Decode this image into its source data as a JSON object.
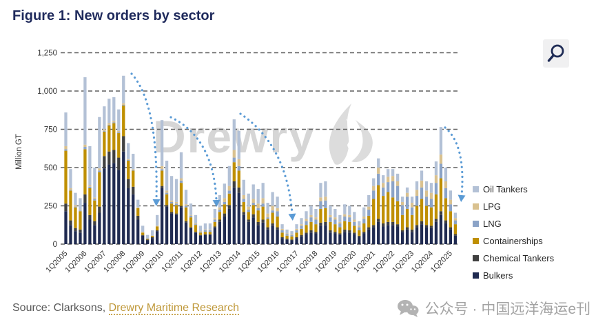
{
  "title": "Figure 1: New orders by sector",
  "toolbar": {
    "zoom_button": "magnifier"
  },
  "watermark": {
    "text": "Drewry",
    "logo": "flame-icon"
  },
  "source": {
    "prefix": "Source: Clarksons, ",
    "link_label": "Drewry Maritime Research"
  },
  "footer_watermark": {
    "icon": "wechat-icon",
    "text": "公众号 · 中国远洋海运e刊"
  },
  "colors": {
    "title_navy": "#1f2a5c",
    "arrow_blue": "#5b9bd5",
    "gridline": "#5f5f5f",
    "axis_text": "#333333",
    "link_gold": "#bf9839",
    "watermark_gray": "#d6d6d6"
  },
  "chart_data": {
    "type": "bar",
    "stacked": true,
    "title": "Figure 1: New orders by sector",
    "xlabel": "",
    "ylabel": "Million GT",
    "ylim": [
      0,
      1250
    ],
    "yticks": [
      0,
      250,
      500,
      750,
      1000,
      1250
    ],
    "ytick_labels": [
      "0",
      "250",
      "500",
      "750",
      "1,000",
      "1,250"
    ],
    "grid": "dashed-horizontal",
    "legend_position": "right",
    "xtick_every": 4,
    "xtick_labels": [
      "1Q2005",
      "1Q2006",
      "1Q2007",
      "1Q2008",
      "1Q2009",
      "1Q2010",
      "1Q2011",
      "1Q2012",
      "1Q2013",
      "1Q2014",
      "1Q2015",
      "1Q2016",
      "1Q2017",
      "1Q2018",
      "1Q2019",
      "1Q2020",
      "1Q2021",
      "1Q2022",
      "1Q2023",
      "1Q2024",
      "1Q2025"
    ],
    "categories": [
      "1Q2005",
      "2Q2005",
      "3Q2005",
      "4Q2005",
      "1Q2006",
      "2Q2006",
      "3Q2006",
      "4Q2006",
      "1Q2007",
      "2Q2007",
      "3Q2007",
      "4Q2007",
      "1Q2008",
      "2Q2008",
      "3Q2008",
      "4Q2008",
      "1Q2009",
      "2Q2009",
      "3Q2009",
      "4Q2009",
      "1Q2010",
      "2Q2010",
      "3Q2010",
      "4Q2010",
      "1Q2011",
      "2Q2011",
      "3Q2011",
      "4Q2011",
      "1Q2012",
      "2Q2012",
      "3Q2012",
      "4Q2012",
      "1Q2013",
      "2Q2013",
      "3Q2013",
      "4Q2013",
      "1Q2014",
      "2Q2014",
      "3Q2014",
      "4Q2014",
      "1Q2015",
      "2Q2015",
      "3Q2015",
      "4Q2015",
      "1Q2016",
      "2Q2016",
      "3Q2016",
      "4Q2016",
      "1Q2017",
      "2Q2017",
      "3Q2017",
      "4Q2017",
      "1Q2018",
      "2Q2018",
      "3Q2018",
      "4Q2018",
      "1Q2019",
      "2Q2019",
      "3Q2019",
      "4Q2019",
      "1Q2020",
      "2Q2020",
      "3Q2020",
      "4Q2020",
      "1Q2021",
      "2Q2021",
      "3Q2021",
      "4Q2021",
      "1Q2022",
      "2Q2022",
      "3Q2022",
      "4Q2022",
      "1Q2023",
      "2Q2023",
      "3Q2023",
      "4Q2023",
      "1Q2024",
      "2Q2024",
      "3Q2024",
      "4Q2024",
      "1Q2025",
      "2Q2025"
    ],
    "stack_order_bottom_to_top": [
      "Bulkers",
      "Chemical Tankers",
      "Containerships",
      "LNG",
      "LPG",
      "Oil Tankers"
    ],
    "series": [
      {
        "name": "Bulkers",
        "color": "#1f2a50",
        "values": [
          215,
          125,
          85,
          75,
          270,
          160,
          125,
          205,
          495,
          520,
          530,
          485,
          605,
          365,
          325,
          160,
          55,
          25,
          40,
          85,
          365,
          245,
          200,
          190,
          240,
          140,
          105,
          75,
          55,
          60,
          60,
          105,
          145,
          180,
          230,
          370,
          335,
          190,
          145,
          175,
          125,
          140,
          95,
          120,
          95,
          40,
          30,
          25,
          40,
          50,
          65,
          75,
          70,
          120,
          125,
          75,
          70,
          60,
          80,
          75,
          65,
          45,
          70,
          95,
          110,
          145,
          115,
          125,
          125,
          115,
          80,
          95,
          80,
          110,
          130,
          110,
          105,
          145,
          190,
          135,
          95,
          55
        ]
      },
      {
        "name": "Chemical Tankers",
        "color": "#404040",
        "values": [
          50,
          30,
          20,
          20,
          55,
          30,
          25,
          40,
          80,
          85,
          85,
          80,
          100,
          60,
          50,
          25,
          5,
          5,
          5,
          5,
          15,
          10,
          10,
          10,
          10,
          10,
          5,
          5,
          5,
          5,
          5,
          10,
          15,
          20,
          25,
          40,
          35,
          20,
          15,
          20,
          20,
          20,
          15,
          15,
          15,
          5,
          5,
          5,
          5,
          10,
          10,
          15,
          10,
          20,
          20,
          15,
          10,
          10,
          15,
          15,
          10,
          10,
          10,
          15,
          15,
          20,
          20,
          20,
          20,
          15,
          10,
          15,
          15,
          15,
          20,
          15,
          15,
          20,
          25,
          20,
          15,
          10
        ]
      },
      {
        "name": "Containerships",
        "color": "#bf8f00",
        "values": [
          345,
          195,
          135,
          120,
          295,
          175,
          135,
          225,
          160,
          170,
          175,
          160,
          200,
          120,
          105,
          50,
          15,
          5,
          10,
          25,
          100,
          70,
          55,
          55,
          150,
          90,
          65,
          45,
          15,
          15,
          15,
          30,
          50,
          60,
          75,
          125,
          110,
          65,
          50,
          60,
          75,
          85,
          55,
          70,
          70,
          30,
          20,
          20,
          30,
          40,
          50,
          55,
          50,
          90,
          90,
          55,
          50,
          40,
          55,
          55,
          45,
          35,
          55,
          75,
          170,
          220,
          180,
          195,
          160,
          150,
          100,
          120,
          95,
          125,
          145,
          125,
          120,
          160,
          215,
          145,
          105,
          65
        ]
      },
      {
        "name": "LNG",
        "color": "#8ba3c7",
        "values": [
          10,
          5,
          5,
          5,
          15,
          10,
          10,
          10,
          5,
          5,
          5,
          5,
          5,
          5,
          5,
          0,
          0,
          0,
          0,
          0,
          10,
          10,
          10,
          10,
          15,
          10,
          10,
          5,
          5,
          10,
          10,
          15,
          15,
          15,
          20,
          30,
          30,
          20,
          15,
          15,
          15,
          20,
          10,
          15,
          35,
          15,
          10,
          10,
          15,
          20,
          25,
          30,
          30,
          50,
          50,
          30,
          30,
          25,
          30,
          30,
          25,
          20,
          30,
          40,
          55,
          75,
          55,
          65,
          105,
          100,
          65,
          80,
          50,
          65,
          75,
          60,
          55,
          75,
          95,
          65,
          45,
          25
        ]
      },
      {
        "name": "LPG",
        "color": "#d9c18f",
        "values": [
          20,
          10,
          10,
          5,
          15,
          10,
          10,
          15,
          10,
          10,
          10,
          10,
          10,
          5,
          5,
          5,
          5,
          0,
          0,
          5,
          20,
          15,
          10,
          10,
          15,
          10,
          5,
          5,
          5,
          5,
          5,
          10,
          15,
          25,
          30,
          50,
          45,
          25,
          20,
          25,
          30,
          35,
          25,
          30,
          20,
          10,
          5,
          5,
          10,
          10,
          15,
          15,
          15,
          25,
          25,
          15,
          15,
          10,
          15,
          15,
          15,
          10,
          15,
          20,
          30,
          40,
          30,
          35,
          35,
          30,
          20,
          25,
          30,
          40,
          45,
          40,
          40,
          50,
          60,
          45,
          30,
          15
        ]
      },
      {
        "name": "Oil Tankers",
        "color": "#b3c1d6",
        "values": [
          220,
          125,
          80,
          75,
          440,
          255,
          195,
          335,
          150,
          160,
          155,
          140,
          180,
          105,
          100,
          50,
          40,
          25,
          35,
          70,
          300,
          195,
          160,
          150,
          170,
          95,
          75,
          55,
          35,
          40,
          40,
          60,
          80,
          95,
          130,
          200,
          185,
          100,
          85,
          95,
          95,
          100,
          70,
          90,
          75,
          30,
          25,
          20,
          30,
          40,
          50,
          60,
          55,
          95,
          100,
          60,
          55,
          45,
          65,
          60,
          50,
          30,
          60,
          75,
          50,
          60,
          50,
          50,
          45,
          50,
          35,
          35,
          40,
          55,
          65,
          60,
          65,
          90,
          180,
          90,
          60,
          35
        ]
      }
    ],
    "legend": [
      {
        "label": "Oil Tankers",
        "color": "#b3c1d6"
      },
      {
        "label": "LPG",
        "color": "#d9c18f"
      },
      {
        "label": "LNG",
        "color": "#8ba3c7"
      },
      {
        "label": "Containerships",
        "color": "#bf8f00"
      },
      {
        "label": "Chemical Tankers",
        "color": "#404040"
      },
      {
        "label": "Bulkers",
        "color": "#1f2a50"
      }
    ],
    "annotations": {
      "arrows_color": "#5b9bd5",
      "arrows": [
        {
          "from": [
            191,
            47
          ],
          "ctrl": [
            230,
            90
          ],
          "to": [
            227,
            229
          ]
        },
        {
          "from": [
            248,
            110
          ],
          "ctrl": [
            310,
            140
          ],
          "to": [
            314,
            230
          ]
        },
        {
          "from": [
            349,
            105
          ],
          "ctrl": [
            416,
            150
          ],
          "to": [
            424,
            250
          ]
        },
        {
          "from": [
            646,
            125
          ],
          "ctrl": [
            676,
            150
          ],
          "to": [
            670,
            223
          ]
        }
      ]
    }
  }
}
